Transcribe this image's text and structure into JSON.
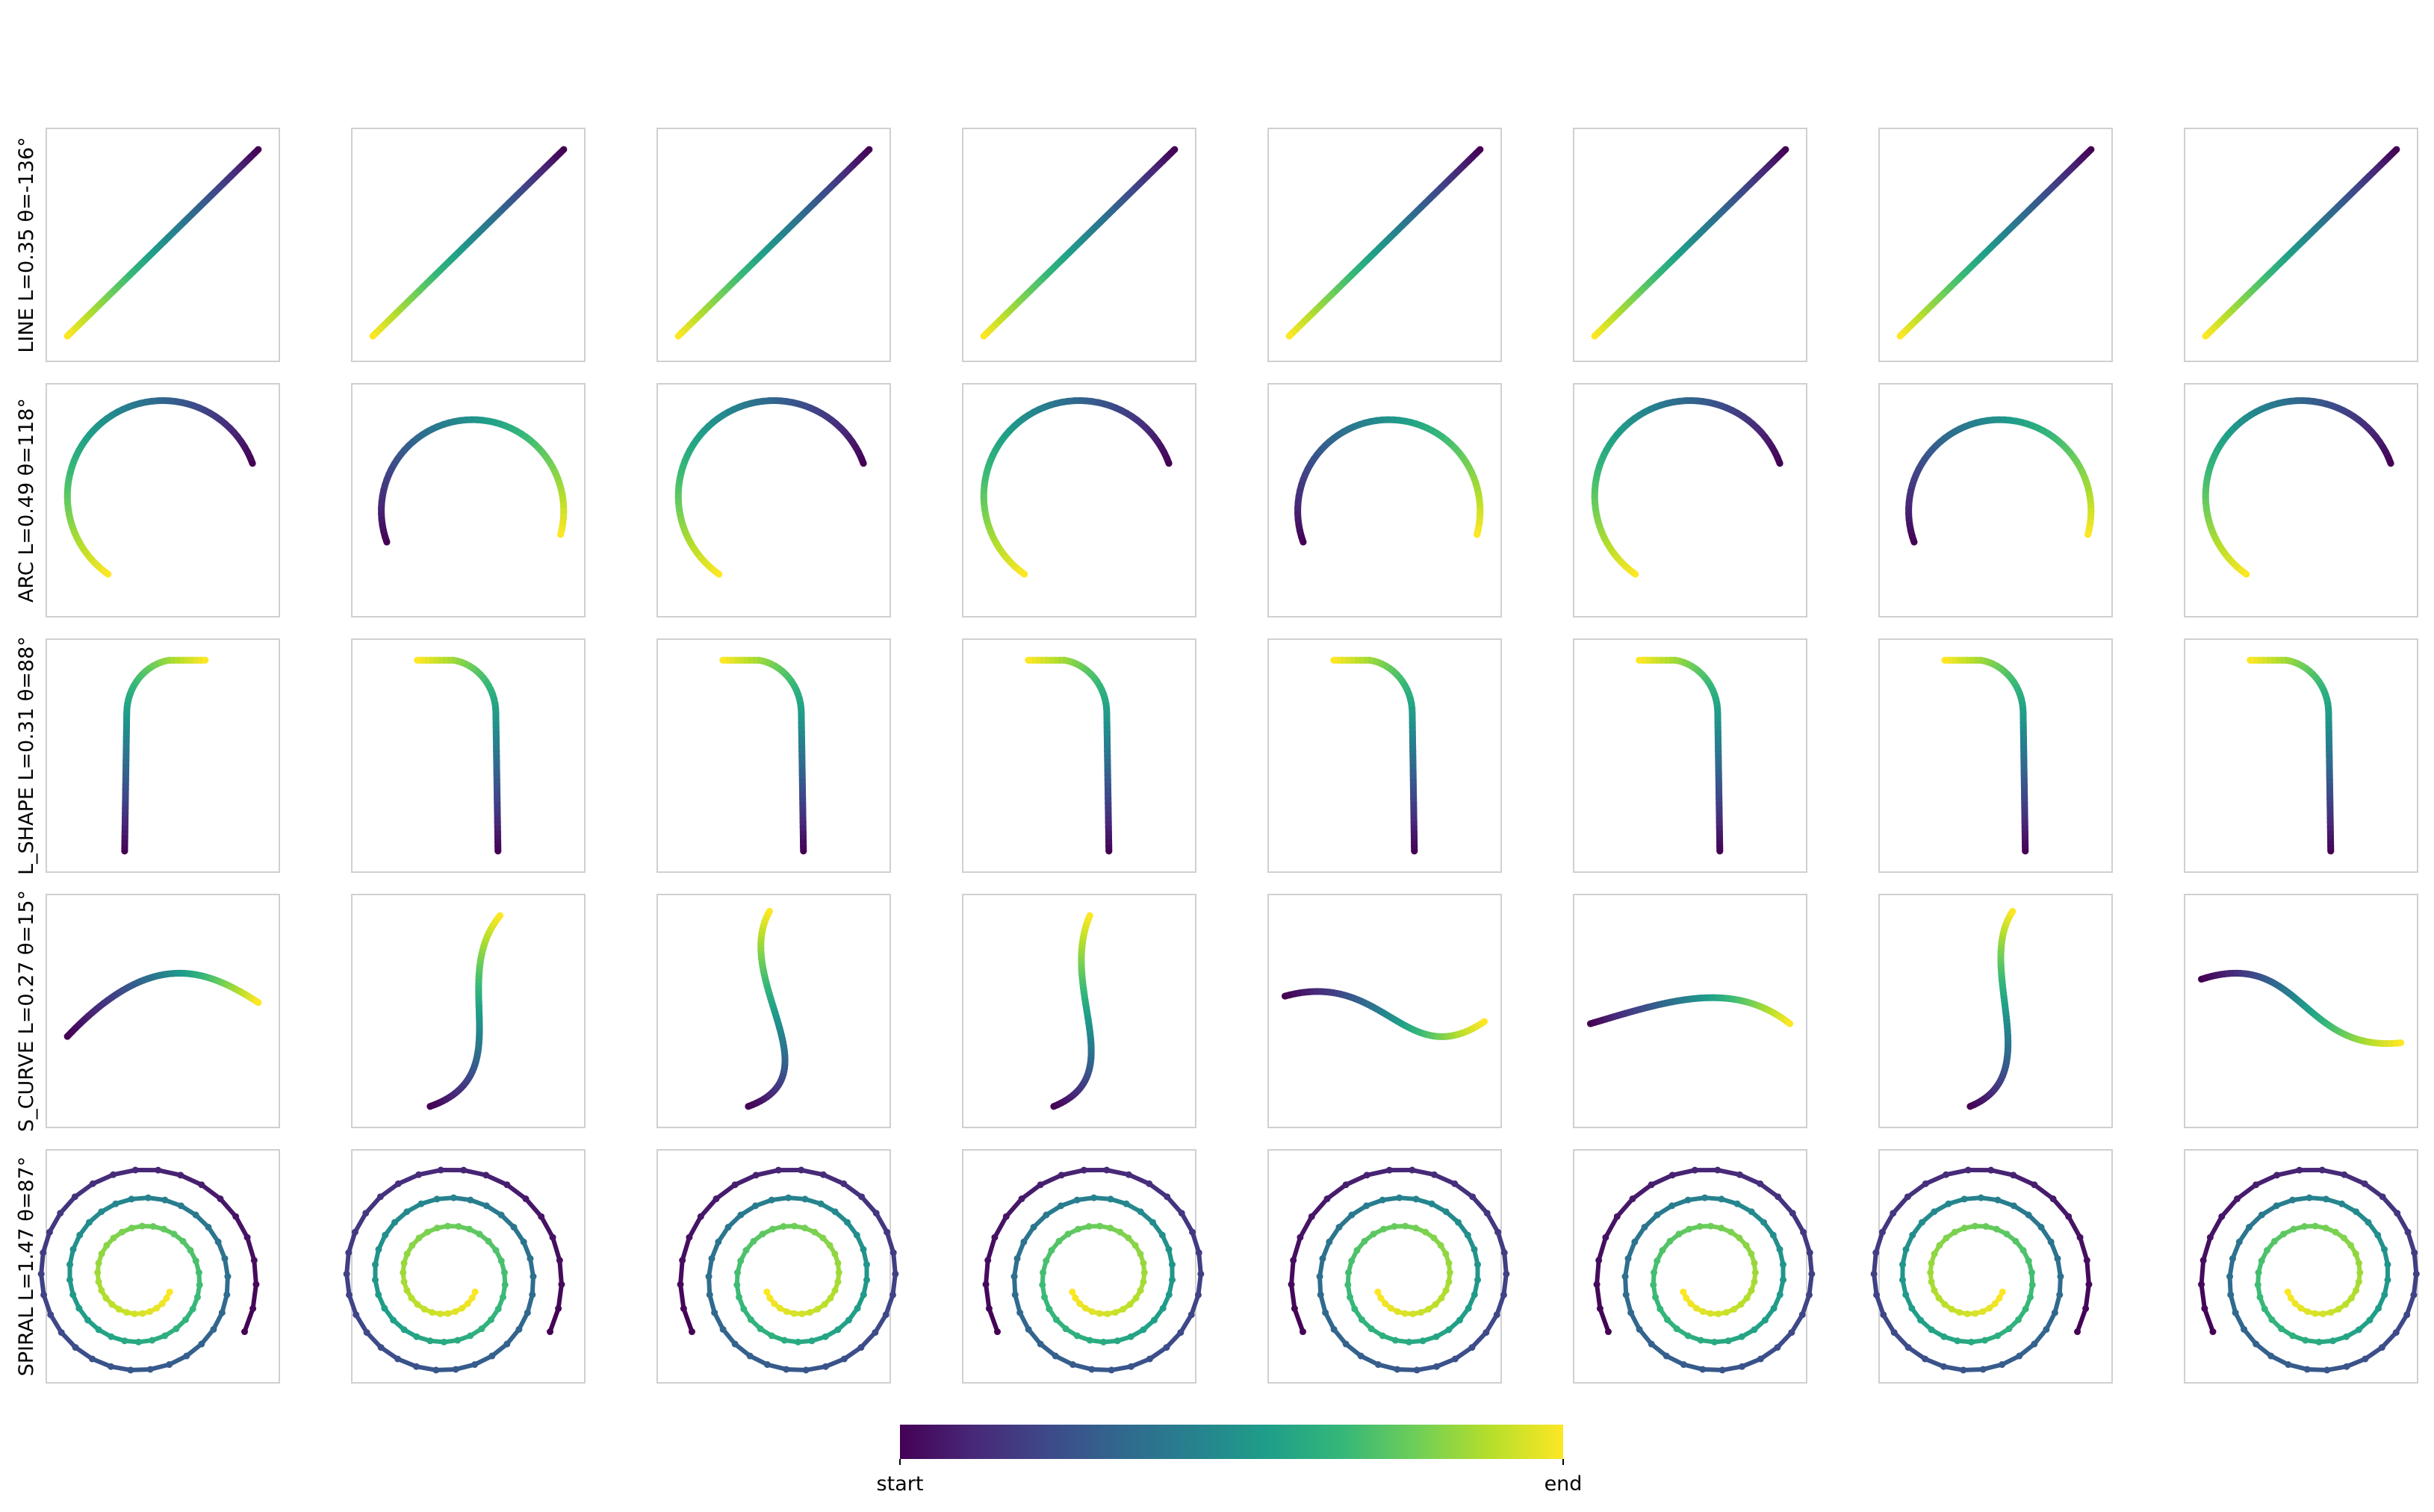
{
  "panels": {
    "row_labels": [
      "LINE L=0.35 θ=-136°",
      "ARC L=0.49 θ=118°",
      "L_SHAPE L=0.31 θ=88°",
      "S_CURVE L=0.27 θ=15°",
      "SPIRAL L=1.47 θ=87°"
    ]
  },
  "colorbar": {
    "start": "start",
    "end": "end"
  }
}
